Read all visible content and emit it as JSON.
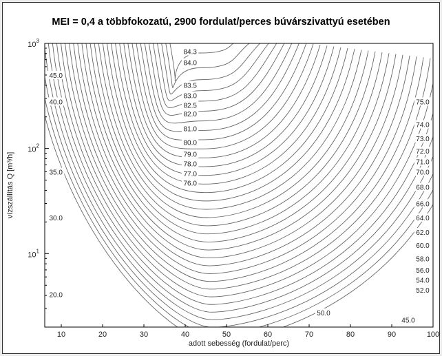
{
  "chart_data": {
    "type": "contour",
    "title": "MEI = 0,4 a többfokozatú, 2900 fordulat/perces búvárszivattyú esetében",
    "xlabel": "adott sebesség (fordulat/perc)",
    "ylabel": "vízszállítás Q [m³/h]",
    "xlim": [
      6,
      100
    ],
    "ylim": [
      2,
      1000
    ],
    "yscale": "log",
    "x_ticks": [
      10,
      20,
      30,
      40,
      50,
      60,
      70,
      80,
      90,
      100
    ],
    "y_ticks": [
      {
        "value": 10,
        "label": "10",
        "exp": "1"
      },
      {
        "value": 100,
        "label": "10",
        "exp": "2"
      },
      {
        "value": 1000,
        "label": "10",
        "exp": "3"
      }
    ],
    "grid": false,
    "contour_labels": [
      {
        "text": "84.3",
        "x": 41.2,
        "y": 840
      },
      {
        "text": "84.0",
        "x": 41.2,
        "y": 660
      },
      {
        "text": "83.5",
        "x": 41.2,
        "y": 400
      },
      {
        "text": "83.0",
        "x": 41.2,
        "y": 320
      },
      {
        "text": "82.5",
        "x": 41.2,
        "y": 260
      },
      {
        "text": "82.0",
        "x": 41.2,
        "y": 215
      },
      {
        "text": "81.0",
        "x": 41.2,
        "y": 155
      },
      {
        "text": "80.0",
        "x": 41.2,
        "y": 115
      },
      {
        "text": "79.0",
        "x": 41.2,
        "y": 89
      },
      {
        "text": "78.0",
        "x": 41.2,
        "y": 72
      },
      {
        "text": "77.0",
        "x": 41.2,
        "y": 58
      },
      {
        "text": "76.0",
        "x": 41.2,
        "y": 47
      },
      {
        "text": "75.0",
        "x": 97.5,
        "y": 280
      },
      {
        "text": "74.0",
        "x": 97.5,
        "y": 170
      },
      {
        "text": "73.0",
        "x": 97.5,
        "y": 125
      },
      {
        "text": "72.0",
        "x": 97.5,
        "y": 95
      },
      {
        "text": "71.0",
        "x": 97.5,
        "y": 75
      },
      {
        "text": "70.0",
        "x": 97.5,
        "y": 60
      },
      {
        "text": "68.0",
        "x": 97.5,
        "y": 43
      },
      {
        "text": "66.0",
        "x": 97.5,
        "y": 30
      },
      {
        "text": "64.0",
        "x": 97.5,
        "y": 22
      },
      {
        "text": "62.0",
        "x": 97.5,
        "y": 16
      },
      {
        "text": "60.0",
        "x": 97.5,
        "y": 12
      },
      {
        "text": "58.0",
        "x": 97.5,
        "y": 9
      },
      {
        "text": "56.0",
        "x": 97.5,
        "y": 7
      },
      {
        "text": "54.0",
        "x": 97.5,
        "y": 5.6
      },
      {
        "text": "52.0",
        "x": 97.5,
        "y": 4.5
      },
      {
        "text": "50.0",
        "x": 73.5,
        "y": 2.75
      },
      {
        "text": "45.0",
        "x": 94,
        "y": 2.35
      },
      {
        "text": "45.0",
        "x": 8.7,
        "y": 500
      },
      {
        "text": "40.0",
        "x": 8.7,
        "y": 280
      },
      {
        "text": "35.0",
        "x": 8.7,
        "y": 60
      },
      {
        "text": "30.0",
        "x": 8.7,
        "y": 22
      },
      {
        "text": "20.0",
        "x": 8.7,
        "y": 4.1
      }
    ]
  }
}
